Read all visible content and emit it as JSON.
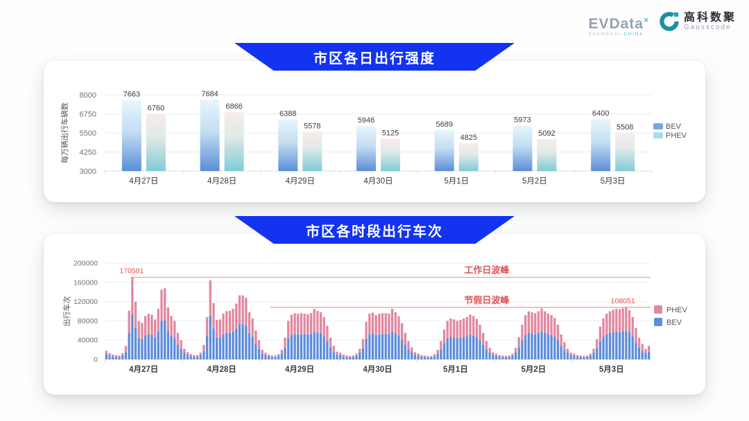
{
  "logo": {
    "evdata_text": "EVData",
    "evdata_sup": "×",
    "evdata_sub_1": "SHANGHAI",
    "evdata_sub_2": "CHINA",
    "gausscode_cn": "高科数聚",
    "gausscode_en": "Gausscode"
  },
  "colors": {
    "banner_blue": "#1233f0",
    "bev_bar_top": "#e7f6fb",
    "bev_bar_mid": "#c3ddf3",
    "bev_bar_bottom": "#5b8ed8",
    "phev_bar_top": "#f8ece9",
    "phev_bar_mid": "#e2eae8",
    "phev_bar_bottom": "#7fccd6",
    "bev_solid": "#5c8cdb",
    "phev_solid": "#e2879f",
    "legend_bev_1": "#74a7e6",
    "legend_phev_1": "#aadde6",
    "annotation_red_text": "#e05454",
    "annotation_red_line": "#ea9a9a",
    "grid_line": "#eaedf0",
    "axis_line": "#d9dde2",
    "tick_text": "#707070",
    "label_text": "#3c3c3c"
  },
  "chart_data": [
    {
      "type": "bar",
      "title": "市区各日出行强度",
      "ylabel": "每万辆出行车辆数",
      "categories": [
        "4月27日",
        "4月28日",
        "4月29日",
        "4月30日",
        "5月1日",
        "5月2日",
        "5月3日"
      ],
      "series": [
        {
          "name": "BEV",
          "values": [
            7663,
            7684,
            6388,
            5946,
            5689,
            5973,
            6400
          ]
        },
        {
          "name": "PHEV",
          "values": [
            6760,
            6866,
            5578,
            5125,
            4825,
            5092,
            5508
          ]
        }
      ],
      "ylim": [
        3000,
        8000
      ],
      "yticks": [
        3000,
        4250,
        5500,
        6750,
        8000
      ],
      "grid": true,
      "legend_position": "right"
    },
    {
      "type": "bar-stacked",
      "title": "市区各时段出行车次",
      "ylabel": "出行车次",
      "categories": [
        "4月27日",
        "4月28日",
        "4月29日",
        "4月30日",
        "5月1日",
        "5月2日",
        "5月3日"
      ],
      "hours_per_day": 24,
      "series_names": [
        "PHEV",
        "BEV"
      ],
      "totals_by_day": [
        [
          18000,
          13000,
          10000,
          9000,
          8000,
          13000,
          28000,
          101000,
          170581,
          120000,
          80000,
          76000,
          90000,
          95000,
          93000,
          83000,
          105000,
          145000,
          148000,
          108000,
          90000,
          80000,
          55000,
          40000
        ],
        [
          22000,
          15000,
          11000,
          9000,
          9000,
          14000,
          30000,
          88000,
          164000,
          117000,
          82000,
          83000,
          95000,
          100000,
          101000,
          105000,
          116000,
          133000,
          133000,
          128000,
          98000,
          85000,
          60000,
          40000
        ],
        [
          20000,
          14000,
          10000,
          8000,
          8000,
          11000,
          20000,
          45000,
          80000,
          93000,
          96000,
          95000,
          96000,
          95000,
          94000,
          96000,
          105000,
          101000,
          98000,
          88000,
          70000,
          45000,
          28000,
          16000
        ],
        [
          14000,
          10000,
          8000,
          7000,
          8000,
          12000,
          22000,
          42000,
          78000,
          95000,
          97000,
          92000,
          95000,
          96000,
          96000,
          95000,
          105000,
          98000,
          90000,
          75000,
          55000,
          38000,
          25000,
          15000
        ],
        [
          12000,
          9000,
          8000,
          7000,
          7000,
          11000,
          20000,
          38000,
          62000,
          80000,
          85000,
          83000,
          80000,
          82000,
          85000,
          88000,
          93000,
          90000,
          84000,
          72000,
          55000,
          38000,
          24000,
          15000
        ],
        [
          12000,
          9000,
          8000,
          7000,
          8000,
          12000,
          24000,
          46000,
          72000,
          92000,
          100000,
          98000,
          96000,
          100000,
          106000,
          100000,
          95000,
          92000,
          86000,
          72000,
          52000,
          36000,
          22000,
          14000
        ],
        [
          12000,
          9000,
          8000,
          7000,
          8000,
          12000,
          22000,
          42000,
          68000,
          85000,
          95000,
          100000,
          103000,
          105000,
          104000,
          106000,
          108051,
          102000,
          88000,
          65000,
          45000,
          32000,
          22000,
          28000
        ]
      ],
      "bev_share": 0.55,
      "bev_share_night": 0.62,
      "night_threshold": 25000,
      "ylim": [
        0,
        200000
      ],
      "yticks": [
        0,
        40000,
        80000,
        120000,
        160000,
        200000
      ],
      "grid": true,
      "legend_position": "right",
      "annotations": [
        {
          "name": "workday-peak",
          "label": "工作日波峰",
          "value": 170581,
          "value_label": "170581",
          "start_day": 0,
          "start_hour": 8,
          "label_pos": 0.7,
          "value_label_day": 0,
          "value_label_hour": 8.3
        },
        {
          "name": "holiday-peak",
          "label": "节假日波峰",
          "value": 108051,
          "value_label": "108051",
          "start_day": 2,
          "start_hour": 3,
          "label_pos": 0.7,
          "value_label_day": 6,
          "value_label_hour": 15.5
        }
      ]
    }
  ]
}
